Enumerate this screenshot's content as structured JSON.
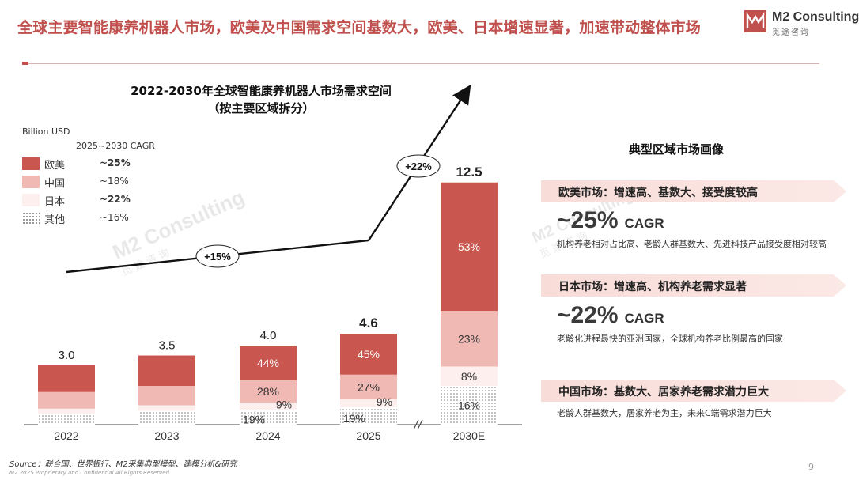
{
  "headline": "全球主要智能康养机器人市场，欧美及中国需求空间基数大，欧美、日本增速显著，加速带动整体市场",
  "logo": {
    "name": "M2 Consulting",
    "sub": "觅途咨询"
  },
  "watermark": {
    "name": "M2 Consulting",
    "sub": "觅途咨询"
  },
  "colors": {
    "accent": "#c0504d",
    "eu": "#c9574f",
    "cn": "#f1b9b3",
    "jp": "#fcefed",
    "other": "dotted"
  },
  "chart": {
    "title_line1": "2022-2030年全球智能康养机器人市场需求空间",
    "title_line2": "（按主要区域拆分）",
    "unit": "Billion USD",
    "cagr_header": "2025~2030 CAGR",
    "legend": [
      {
        "name": "欧美",
        "cagr": "~25%",
        "bold": true,
        "swatch": "eu"
      },
      {
        "name": "中国",
        "cagr": "~18%",
        "bold": false,
        "swatch": "cn"
      },
      {
        "name": "日本",
        "cagr": "~22%",
        "bold": true,
        "swatch": "jp"
      },
      {
        "name": "其他",
        "cagr": "~16%",
        "bold": false,
        "swatch": "ot"
      }
    ],
    "growth_labels": [
      "+15%",
      "+22%"
    ]
  },
  "chart_data": {
    "type": "bar",
    "stacked": true,
    "unit": "Billion USD",
    "categories": [
      "2022",
      "2023",
      "2024",
      "2025",
      "2030E"
    ],
    "totals": [
      3.0,
      3.5,
      4.0,
      4.6,
      12.5
    ],
    "total_labels": [
      "3.0",
      "3.5",
      "4.0",
      "4.6",
      "12.5"
    ],
    "total_bold": [
      false,
      false,
      false,
      true,
      true
    ],
    "series": [
      {
        "name": "欧美",
        "shares": [
          0.45,
          0.44,
          0.44,
          0.45,
          0.53
        ],
        "labels": [
          "",
          "",
          "44%",
          "45%",
          "53%"
        ]
      },
      {
        "name": "中国",
        "shares": [
          0.28,
          0.28,
          0.28,
          0.27,
          0.23
        ],
        "labels": [
          "",
          "",
          "28%",
          "27%",
          "23%"
        ]
      },
      {
        "name": "日本",
        "shares": [
          0.08,
          0.08,
          0.09,
          0.09,
          0.08
        ],
        "labels": [
          "",
          "",
          "9%",
          "9%",
          "8%"
        ]
      },
      {
        "name": "其他",
        "shares": [
          0.19,
          0.2,
          0.19,
          0.19,
          0.16
        ],
        "labels": [
          "",
          "",
          "19%",
          "19%",
          "16%"
        ]
      }
    ],
    "annotations": [
      {
        "text": "+15%",
        "from": "2022",
        "to": "2025"
      },
      {
        "text": "+22%",
        "from": "2025",
        "to": "2030E"
      }
    ],
    "axis_break": "between 2025 and 2030E"
  },
  "side": {
    "title": "典型区域市场画像",
    "regions": [
      {
        "banner": "欧美市场：增速高、基数大、接受度较高",
        "cagr": "~25%",
        "cagr_suffix": "CAGR",
        "desc": "机构养老相对占比高、老龄人群基数大、先进科技产品接受度相对较高"
      },
      {
        "banner": "日本市场：增速高、机构养老需求显著",
        "cagr": "~22%",
        "cagr_suffix": "CAGR",
        "desc": "老龄化进程最快的亚洲国家，全球机构养老比例最高的国家"
      },
      {
        "banner": "中国市场：基数大、居家养老需求潜力巨大",
        "cagr": "",
        "cagr_suffix": "",
        "desc": "老龄人群基数大，居家养老为主，未来C端需求潜力巨大"
      }
    ]
  },
  "source": "Source：联合国、世界银行、M2采集典型模型、建模分析&研究",
  "footer": "M2 2025 Proprietary and Confidential All Rights Reserved",
  "page_number": "9"
}
